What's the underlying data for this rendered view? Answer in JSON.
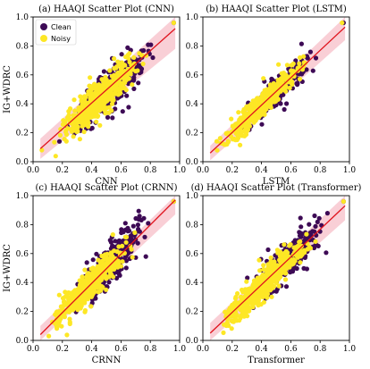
{
  "colors": {
    "clean": "#3d0a55",
    "noisy": "#fde725",
    "fit_line": "#e0141e",
    "band": "#f4a7b4",
    "axes": "#000000"
  },
  "legend": {
    "entries": [
      "Clean",
      "Noisy"
    ],
    "placement": "upper-left"
  },
  "chart_data": [
    {
      "type": "scatter",
      "title": "(a) HAAQI Scatter Plot (CNN)",
      "xlabel": "CNN",
      "ylabel": "IG+WDRC",
      "xlim": [
        0.0,
        1.0
      ],
      "ylim": [
        0.0,
        1.0
      ],
      "xticks": [
        "0.0",
        "0.2",
        "0.4",
        "0.6",
        "0.8",
        "1.0"
      ],
      "yticks": [
        "0.0",
        "0.2",
        "0.4",
        "0.6",
        "0.8",
        "1.0"
      ],
      "fit": {
        "x": [
          0.05,
          0.97
        ],
        "y": [
          0.09,
          0.92
        ]
      },
      "band": {
        "x": [
          0.05,
          0.97
        ],
        "lower": [
          0.02,
          0.78
        ],
        "upper": [
          0.16,
          1.0
        ]
      },
      "series": [
        {
          "name": "Clean",
          "count": 340,
          "x_range": [
            0.2,
            0.9
          ],
          "slope": 0.95,
          "intercept": 0.0,
          "spread": 0.07,
          "extra": [
            [
              0.96,
              0.96
            ],
            [
              0.18,
              0.14
            ]
          ]
        },
        {
          "name": "Noisy",
          "count": 520,
          "x_range": [
            0.08,
            0.8
          ],
          "slope": 0.92,
          "intercept": 0.02,
          "spread": 0.06,
          "extra": [
            [
              0.96,
              0.96
            ],
            [
              0.06,
              0.08
            ]
          ]
        }
      ]
    },
    {
      "type": "scatter",
      "title": "(b) HAAQI Scatter Plot (LSTM)",
      "xlabel": "LSTM",
      "ylabel": "",
      "xlim": [
        0.0,
        1.0
      ],
      "ylim": [
        0.0,
        1.0
      ],
      "xticks": [
        "0.0",
        "0.2",
        "0.4",
        "0.6",
        "0.8",
        "1.0"
      ],
      "yticks": [
        "0.0",
        "0.2",
        "0.4",
        "0.6",
        "0.8",
        "1.0"
      ],
      "fit": {
        "x": [
          0.05,
          0.97
        ],
        "y": [
          0.06,
          0.93
        ]
      },
      "band": {
        "x": [
          0.05,
          0.97
        ],
        "lower": [
          0.01,
          0.84
        ],
        "upper": [
          0.11,
          1.0
        ]
      },
      "series": [
        {
          "name": "Clean",
          "count": 320,
          "x_range": [
            0.2,
            0.8
          ],
          "slope": 1.0,
          "intercept": -0.02,
          "spread": 0.045,
          "extra": [
            [
              0.96,
              0.96
            ]
          ]
        },
        {
          "name": "Noisy",
          "count": 520,
          "x_range": [
            0.05,
            0.75
          ],
          "slope": 0.98,
          "intercept": 0.0,
          "spread": 0.04,
          "extra": [
            [
              0.95,
              0.96
            ]
          ]
        }
      ]
    },
    {
      "type": "scatter",
      "title": "(c) HAAQI Scatter Plot (CRNN)",
      "xlabel": "CRNN",
      "ylabel": "IG+WDRC",
      "xlim": [
        0.0,
        1.0
      ],
      "ylim": [
        0.0,
        1.0
      ],
      "xticks": [
        "0.0",
        "0.2",
        "0.4",
        "0.6",
        "0.8",
        "1.0"
      ],
      "yticks": [
        "0.0",
        "0.2",
        "0.4",
        "0.6",
        "0.8",
        "1.0"
      ],
      "fit": {
        "x": [
          0.05,
          0.97
        ],
        "y": [
          0.04,
          0.97
        ]
      },
      "band": {
        "x": [
          0.05,
          0.97
        ],
        "lower": [
          0.0,
          0.87
        ],
        "upper": [
          0.1,
          1.0
        ]
      },
      "series": [
        {
          "name": "Clean",
          "count": 330,
          "x_range": [
            0.25,
            0.82
          ],
          "slope": 1.05,
          "intercept": -0.02,
          "spread": 0.07,
          "extra": [
            [
              0.96,
              0.96
            ]
          ]
        },
        {
          "name": "Noisy",
          "count": 520,
          "x_range": [
            0.06,
            0.7
          ],
          "slope": 1.0,
          "intercept": -0.01,
          "spread": 0.05,
          "extra": [
            [
              0.96,
              0.96
            ]
          ]
        }
      ]
    },
    {
      "type": "scatter",
      "title": "(d) HAAQI Scatter Plot (Transformer)",
      "xlabel": "Transformer",
      "ylabel": "",
      "xlim": [
        0.0,
        1.0
      ],
      "ylim": [
        0.0,
        1.0
      ],
      "xticks": [
        "0.0",
        "0.2",
        "0.4",
        "0.6",
        "0.8",
        "1.0"
      ],
      "yticks": [
        "0.0",
        "0.2",
        "0.4",
        "0.6",
        "0.8",
        "1.0"
      ],
      "fit": {
        "x": [
          0.05,
          0.97
        ],
        "y": [
          0.05,
          0.93
        ]
      },
      "band": {
        "x": [
          0.05,
          0.97
        ],
        "lower": [
          0.0,
          0.83
        ],
        "upper": [
          0.12,
          1.0
        ]
      },
      "series": [
        {
          "name": "Clean",
          "count": 320,
          "x_range": [
            0.25,
            0.9
          ],
          "slope": 0.96,
          "intercept": 0.0,
          "spread": 0.06,
          "extra": [
            [
              0.96,
              0.96
            ]
          ]
        },
        {
          "name": "Noisy",
          "count": 520,
          "x_range": [
            0.05,
            0.8
          ],
          "slope": 0.95,
          "intercept": 0.0,
          "spread": 0.05,
          "extra": [
            [
              0.96,
              0.96
            ]
          ]
        }
      ]
    }
  ]
}
